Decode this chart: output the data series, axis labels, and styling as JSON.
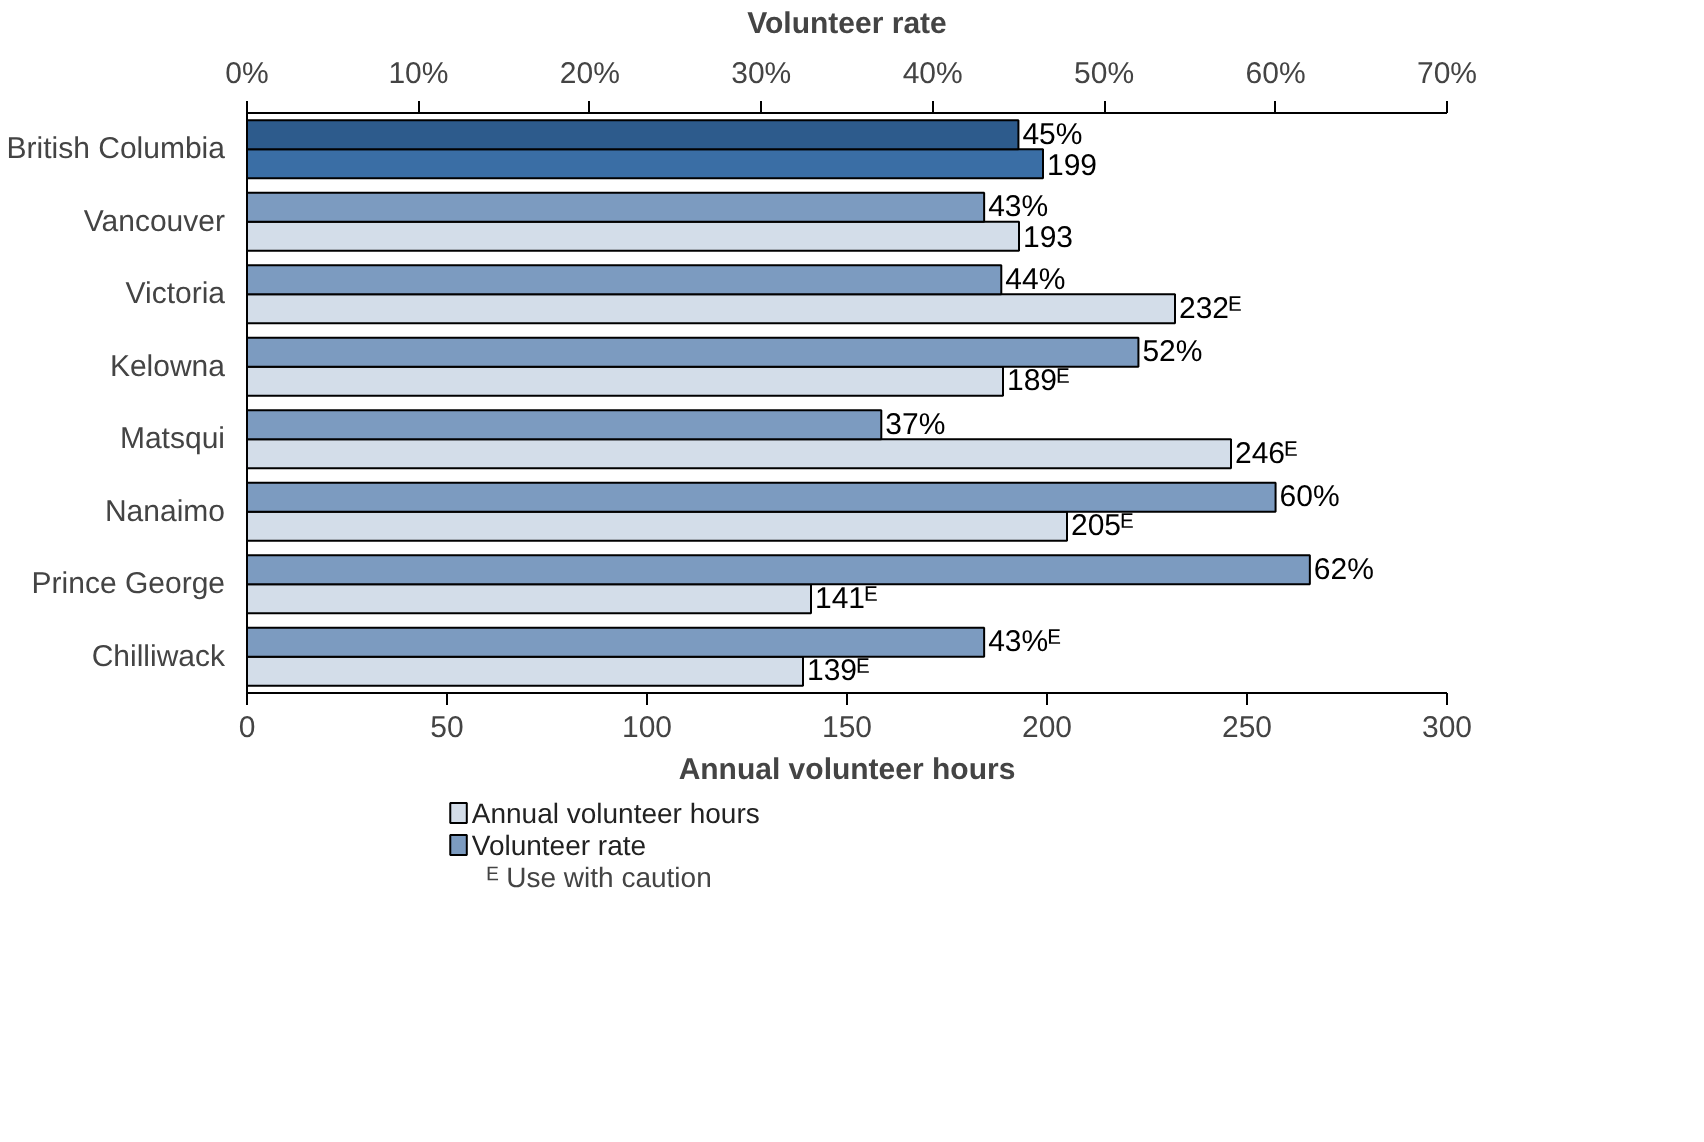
{
  "chart_data": {
    "type": "bar",
    "orientation": "horizontal",
    "categories": [
      "British Columbia",
      "Vancouver",
      "Victoria",
      "Kelowna",
      "Matsqui",
      "Nanaimo",
      "Prince George",
      "Chilliwack"
    ],
    "series": [
      {
        "name": "Annual volunteer hours",
        "color": "#d3dde9",
        "colors": [
          "#3a6ea5",
          "#d3dde9",
          "#d3dde9",
          "#d3dde9",
          "#d3dde9",
          "#d3dde9",
          "#d3dde9",
          "#d3dde9"
        ],
        "values": [
          199,
          193,
          232,
          189,
          246,
          205,
          141,
          139
        ],
        "value_labels": [
          "199",
          "193",
          "232ᴱ",
          "189ᴱ",
          "246ᴱ",
          "205ᴱ",
          "141ᴱ",
          "139ᴱ"
        ]
      },
      {
        "name": "Volunteer rate",
        "axis": "x2",
        "color": "#7c9bc0",
        "colors": [
          "#2d5b8c",
          "#7c9bc0",
          "#7c9bc0",
          "#7c9bc0",
          "#7c9bc0",
          "#7c9bc0",
          "#7c9bc0",
          "#7c9bc0"
        ],
        "values": [
          45,
          43,
          44,
          52,
          37,
          60,
          62,
          43
        ],
        "value_labels": [
          "45%",
          "43%",
          "44%",
          "52%",
          "37%",
          "60%",
          "62%",
          "43%ᴱ"
        ]
      }
    ],
    "xlabel": "Annual volunteer hours",
    "xlim": [
      0,
      300
    ],
    "xticks": [
      0,
      50,
      100,
      150,
      200,
      250,
      300
    ],
    "x2label": "Volunteer rate",
    "x2lim": [
      0,
      70
    ],
    "x2ticks": [
      {
        "value": 0,
        "label": "0%"
      },
      {
        "value": 10,
        "label": "10%"
      },
      {
        "value": 20,
        "label": "20%"
      },
      {
        "value": 30,
        "label": "30%"
      },
      {
        "value": 40,
        "label": "40%"
      },
      {
        "value": 50,
        "label": "50%"
      },
      {
        "value": 60,
        "label": "60%"
      },
      {
        "value": 70,
        "label": "70%"
      }
    ],
    "legend": "bottom",
    "grid": false,
    "annotations": [
      "ᴱ Use with caution"
    ]
  }
}
